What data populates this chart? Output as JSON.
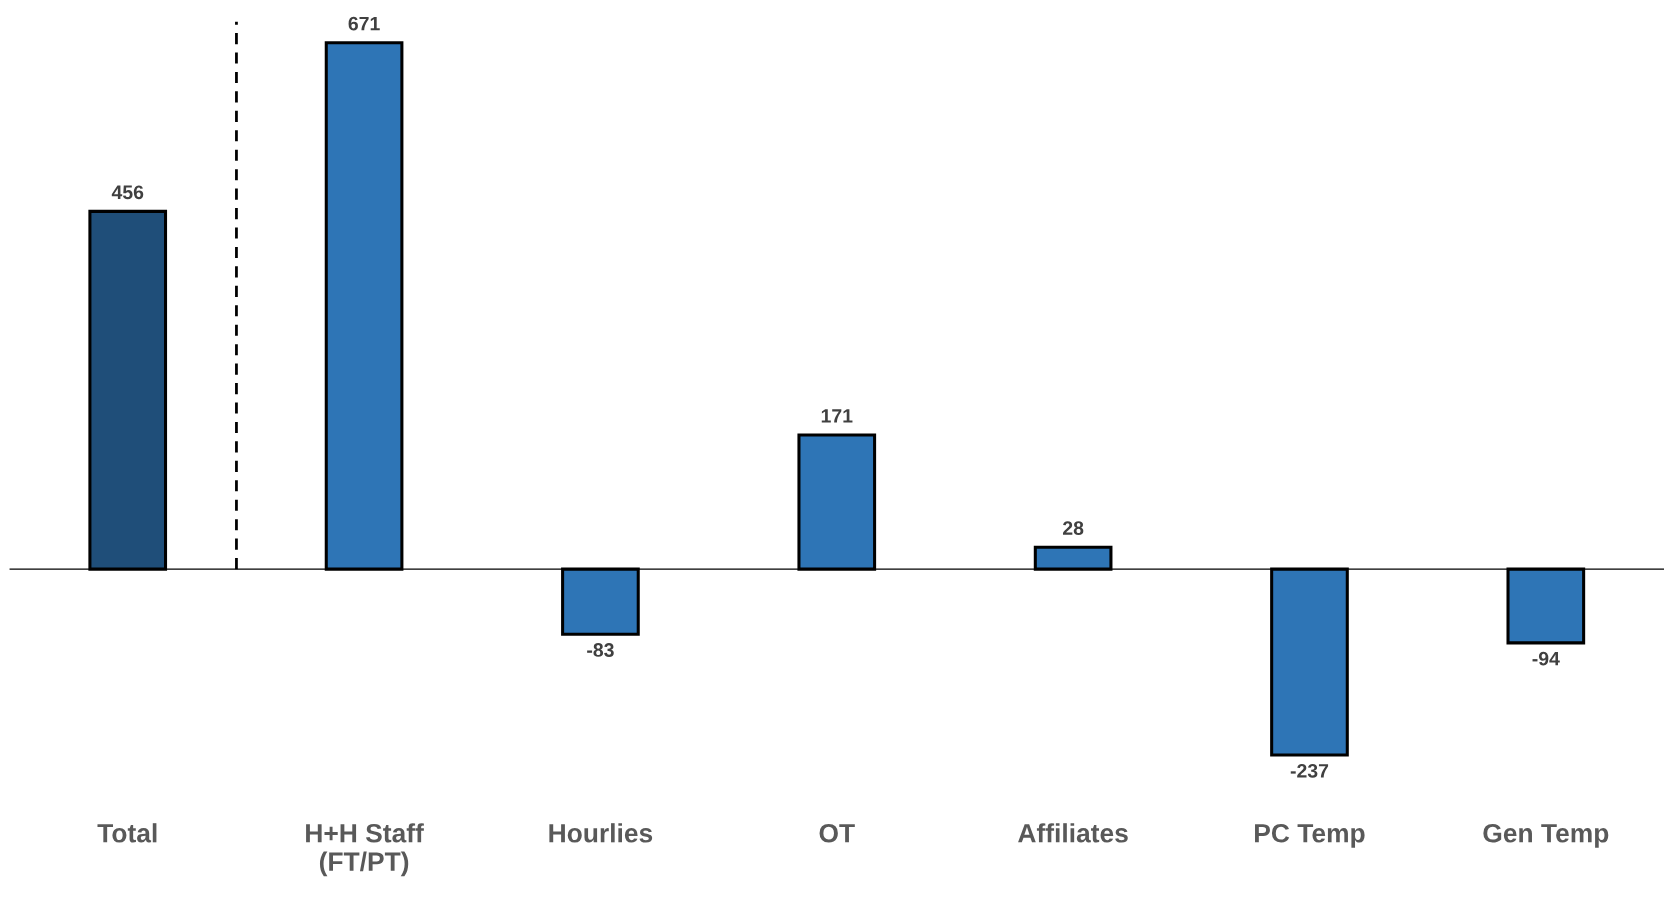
{
  "chart_data": {
    "type": "bar",
    "categories": [
      "Total",
      "H+H Staff\n(FT/PT)",
      "Hourlies",
      "OT",
      "Affiliates",
      "PC Temp",
      "Gen Temp"
    ],
    "values": [
      456,
      671,
      -83,
      171,
      28,
      -237,
      -94
    ],
    "colors": [
      "#1f4e79",
      "#2e75b6",
      "#2e75b6",
      "#2e75b6",
      "#2e75b6",
      "#2e75b6",
      "#2e75b6"
    ],
    "data_labels": true
  }
}
